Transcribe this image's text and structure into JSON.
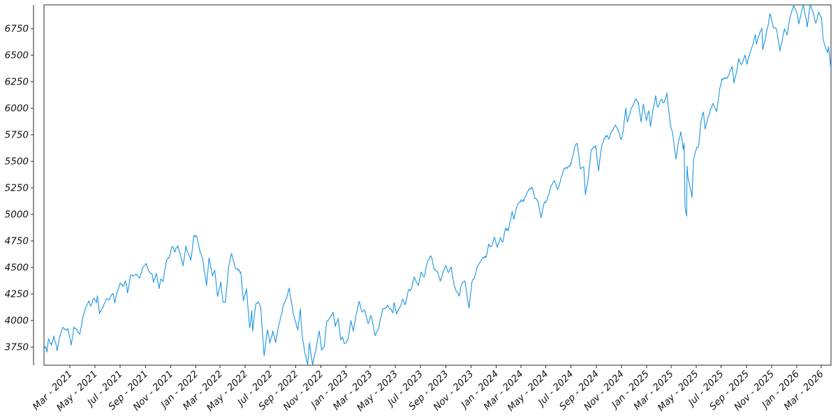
{
  "chart_data": {
    "type": "line",
    "title": "",
    "legend": null,
    "grid": false,
    "line_color": "#1b95e0",
    "frame_color": "#2b2b2b",
    "text_color": "#111111",
    "background": "#ffffff",
    "xlim": [
      "2020-12-28",
      "2026-03-25"
    ],
    "ylim": [
      3578,
      6974
    ],
    "daily_noise": 12,
    "y_axis": {
      "ticks": [
        3750,
        4000,
        4250,
        4500,
        4750,
        5000,
        5250,
        5500,
        5750,
        6000,
        6250,
        6500,
        6750
      ]
    },
    "x_axis": {
      "rotation": 45,
      "ticks": [
        {
          "label": "Mar - 2021",
          "date": "2021-03-01"
        },
        {
          "label": "May - 2021",
          "date": "2021-05-01"
        },
        {
          "label": "Jul - 2021",
          "date": "2021-07-01"
        },
        {
          "label": "Sep - 2021",
          "date": "2021-09-01"
        },
        {
          "label": "Nov - 2021",
          "date": "2021-11-01"
        },
        {
          "label": "Jan - 2022",
          "date": "2022-01-01"
        },
        {
          "label": "Mar - 2022",
          "date": "2022-03-01"
        },
        {
          "label": "May - 2022",
          "date": "2022-05-01"
        },
        {
          "label": "Jul - 2022",
          "date": "2022-07-01"
        },
        {
          "label": "Sep - 2022",
          "date": "2022-09-01"
        },
        {
          "label": "Nov - 2022",
          "date": "2022-11-01"
        },
        {
          "label": "Jan - 2023",
          "date": "2023-01-01"
        },
        {
          "label": "Mar - 2023",
          "date": "2023-03-01"
        },
        {
          "label": "May - 2023",
          "date": "2023-05-01"
        },
        {
          "label": "Jul - 2023",
          "date": "2023-07-01"
        },
        {
          "label": "Sep - 2023",
          "date": "2023-09-01"
        },
        {
          "label": "Nov - 2023",
          "date": "2023-11-01"
        },
        {
          "label": "Jan - 2024",
          "date": "2024-01-01"
        },
        {
          "label": "Mar - 2024",
          "date": "2024-03-01"
        },
        {
          "label": "May - 2024",
          "date": "2024-05-01"
        },
        {
          "label": "Jul - 2024",
          "date": "2024-07-01"
        },
        {
          "label": "Sep - 2024",
          "date": "2024-09-01"
        },
        {
          "label": "Nov - 2024",
          "date": "2024-11-01"
        },
        {
          "label": "Jan - 2025",
          "date": "2025-01-01"
        },
        {
          "label": "Mar - 2025",
          "date": "2025-03-01"
        },
        {
          "label": "May - 2025",
          "date": "2025-05-01"
        },
        {
          "label": "Jul - 2025",
          "date": "2025-07-01"
        },
        {
          "label": "Sep - 2025",
          "date": "2025-09-01"
        },
        {
          "label": "Nov - 2025",
          "date": "2025-11-01"
        },
        {
          "label": "Jan - 2026",
          "date": "2026-01-01"
        },
        {
          "label": "Mar - 2026",
          "date": "2026-03-01"
        }
      ]
    },
    "points": [
      [
        "2020-12-28",
        3735
      ],
      [
        "2020-12-31",
        3756
      ],
      [
        "2021-01-04",
        3701
      ],
      [
        "2021-01-08",
        3825
      ],
      [
        "2021-01-15",
        3768
      ],
      [
        "2021-01-21",
        3853
      ],
      [
        "2021-01-29",
        3714
      ],
      [
        "2021-02-03",
        3830
      ],
      [
        "2021-02-12",
        3935
      ],
      [
        "2021-02-19",
        3907
      ],
      [
        "2021-02-24",
        3925
      ],
      [
        "2021-03-04",
        3768
      ],
      [
        "2021-03-11",
        3939
      ],
      [
        "2021-03-18",
        3915
      ],
      [
        "2021-03-25",
        3870
      ],
      [
        "2021-04-01",
        4020
      ],
      [
        "2021-04-09",
        4129
      ],
      [
        "2021-04-16",
        4185
      ],
      [
        "2021-04-20",
        4135
      ],
      [
        "2021-04-29",
        4211
      ],
      [
        "2021-05-04",
        4164
      ],
      [
        "2021-05-07",
        4233
      ],
      [
        "2021-05-12",
        4063
      ],
      [
        "2021-05-19",
        4116
      ],
      [
        "2021-05-28",
        4204
      ],
      [
        "2021-06-03",
        4193
      ],
      [
        "2021-06-14",
        4255
      ],
      [
        "2021-06-18",
        4166
      ],
      [
        "2021-06-25",
        4281
      ],
      [
        "2021-07-02",
        4352
      ],
      [
        "2021-07-08",
        4321
      ],
      [
        "2021-07-14",
        4374
      ],
      [
        "2021-07-19",
        4258
      ],
      [
        "2021-07-26",
        4422
      ],
      [
        "2021-08-03",
        4423
      ],
      [
        "2021-08-10",
        4436
      ],
      [
        "2021-08-18",
        4400
      ],
      [
        "2021-08-25",
        4496
      ],
      [
        "2021-09-02",
        4537
      ],
      [
        "2021-09-10",
        4459
      ],
      [
        "2021-09-17",
        4433
      ],
      [
        "2021-09-20",
        4358
      ],
      [
        "2021-09-27",
        4443
      ],
      [
        "2021-10-04",
        4300
      ],
      [
        "2021-10-08",
        4391
      ],
      [
        "2021-10-13",
        4364
      ],
      [
        "2021-10-21",
        4550
      ],
      [
        "2021-10-29",
        4605
      ],
      [
        "2021-11-05",
        4698
      ],
      [
        "2021-11-10",
        4647
      ],
      [
        "2021-11-18",
        4705
      ],
      [
        "2021-11-26",
        4595
      ],
      [
        "2021-12-01",
        4513
      ],
      [
        "2021-12-08",
        4701
      ],
      [
        "2021-12-14",
        4634
      ],
      [
        "2021-12-20",
        4568
      ],
      [
        "2021-12-27",
        4791
      ],
      [
        "2022-01-03",
        4797
      ],
      [
        "2022-01-10",
        4670
      ],
      [
        "2022-01-18",
        4577
      ],
      [
        "2022-01-27",
        4327
      ],
      [
        "2022-02-02",
        4589
      ],
      [
        "2022-02-11",
        4419
      ],
      [
        "2022-02-16",
        4475
      ],
      [
        "2022-02-23",
        4226
      ],
      [
        "2022-03-03",
        4363
      ],
      [
        "2022-03-08",
        4171
      ],
      [
        "2022-03-14",
        4173
      ],
      [
        "2022-03-22",
        4512
      ],
      [
        "2022-03-29",
        4631
      ],
      [
        "2022-04-08",
        4488
      ],
      [
        "2022-04-20",
        4459
      ],
      [
        "2022-04-27",
        4184
      ],
      [
        "2022-05-04",
        4300
      ],
      [
        "2022-05-12",
        3930
      ],
      [
        "2022-05-17",
        4089
      ],
      [
        "2022-05-19",
        3900
      ],
      [
        "2022-05-27",
        4158
      ],
      [
        "2022-06-02",
        4177
      ],
      [
        "2022-06-08",
        4116
      ],
      [
        "2022-06-16",
        3667
      ],
      [
        "2022-06-24",
        3912
      ],
      [
        "2022-06-30",
        3785
      ],
      [
        "2022-07-07",
        3902
      ],
      [
        "2022-07-14",
        3790
      ],
      [
        "2022-07-22",
        3962
      ],
      [
        "2022-08-03",
        4155
      ],
      [
        "2022-08-10",
        4210
      ],
      [
        "2022-08-16",
        4305
      ],
      [
        "2022-08-26",
        4058
      ],
      [
        "2022-09-06",
        3908
      ],
      [
        "2022-09-12",
        4110
      ],
      [
        "2022-09-16",
        3873
      ],
      [
        "2022-09-23",
        3693
      ],
      [
        "2022-09-30",
        3586
      ],
      [
        "2022-10-04",
        3791
      ],
      [
        "2022-10-12",
        3577
      ],
      [
        "2022-10-17",
        3678
      ],
      [
        "2022-10-21",
        3753
      ],
      [
        "2022-10-28",
        3901
      ],
      [
        "2022-11-03",
        3720
      ],
      [
        "2022-11-09",
        3748
      ],
      [
        "2022-11-15",
        3992
      ],
      [
        "2022-11-23",
        4027
      ],
      [
        "2022-12-01",
        4077
      ],
      [
        "2022-12-06",
        3941
      ],
      [
        "2022-12-13",
        4020
      ],
      [
        "2022-12-19",
        3818
      ],
      [
        "2022-12-23",
        3845
      ],
      [
        "2022-12-28",
        3783
      ],
      [
        "2023-01-05",
        3808
      ],
      [
        "2023-01-13",
        3999
      ],
      [
        "2023-01-19",
        3899
      ],
      [
        "2023-01-26",
        4060
      ],
      [
        "2023-02-02",
        4180
      ],
      [
        "2023-02-09",
        4081
      ],
      [
        "2023-02-16",
        4090
      ],
      [
        "2023-02-24",
        3970
      ],
      [
        "2023-03-03",
        4046
      ],
      [
        "2023-03-13",
        3856
      ],
      [
        "2023-03-22",
        3937
      ],
      [
        "2023-03-31",
        4109
      ],
      [
        "2023-04-14",
        4138
      ],
      [
        "2023-04-25",
        4071
      ],
      [
        "2023-04-28",
        4169
      ],
      [
        "2023-05-04",
        4061
      ],
      [
        "2023-05-12",
        4124
      ],
      [
        "2023-05-18",
        4198
      ],
      [
        "2023-05-25",
        4151
      ],
      [
        "2023-06-02",
        4282
      ],
      [
        "2023-06-09",
        4299
      ],
      [
        "2023-06-16",
        4410
      ],
      [
        "2023-06-26",
        4329
      ],
      [
        "2023-07-03",
        4456
      ],
      [
        "2023-07-10",
        4410
      ],
      [
        "2023-07-19",
        4566
      ],
      [
        "2023-07-27",
        4607
      ],
      [
        "2023-08-04",
        4478
      ],
      [
        "2023-08-11",
        4464
      ],
      [
        "2023-08-18",
        4370
      ],
      [
        "2023-08-29",
        4498
      ],
      [
        "2023-09-01",
        4516
      ],
      [
        "2023-09-07",
        4451
      ],
      [
        "2023-09-14",
        4505
      ],
      [
        "2023-09-21",
        4330
      ],
      [
        "2023-09-27",
        4274
      ],
      [
        "2023-10-03",
        4229
      ],
      [
        "2023-10-10",
        4358
      ],
      [
        "2023-10-17",
        4373
      ],
      [
        "2023-10-27",
        4117
      ],
      [
        "2023-11-03",
        4358
      ],
      [
        "2023-11-10",
        4415
      ],
      [
        "2023-11-17",
        4514
      ],
      [
        "2023-11-24",
        4559
      ],
      [
        "2023-12-01",
        4595
      ],
      [
        "2023-12-08",
        4604
      ],
      [
        "2023-12-14",
        4720
      ],
      [
        "2023-12-20",
        4698
      ],
      [
        "2023-12-28",
        4783
      ],
      [
        "2024-01-04",
        4688
      ],
      [
        "2024-01-11",
        4780
      ],
      [
        "2024-01-17",
        4739
      ],
      [
        "2024-01-24",
        4869
      ],
      [
        "2024-01-31",
        4846
      ],
      [
        "2024-02-09",
        5027
      ],
      [
        "2024-02-13",
        4953
      ],
      [
        "2024-02-22",
        5087
      ],
      [
        "2024-03-01",
        5137
      ],
      [
        "2024-03-08",
        5124
      ],
      [
        "2024-03-21",
        5241
      ],
      [
        "2024-03-28",
        5254
      ],
      [
        "2024-04-04",
        5147
      ],
      [
        "2024-04-12",
        5123
      ],
      [
        "2024-04-19",
        4967
      ],
      [
        "2024-04-26",
        5100
      ],
      [
        "2024-05-03",
        5128
      ],
      [
        "2024-05-10",
        5223
      ],
      [
        "2024-05-21",
        5321
      ],
      [
        "2024-05-30",
        5235
      ],
      [
        "2024-06-07",
        5347
      ],
      [
        "2024-06-14",
        5432
      ],
      [
        "2024-06-24",
        5448
      ],
      [
        "2024-07-01",
        5475
      ],
      [
        "2024-07-10",
        5634
      ],
      [
        "2024-07-16",
        5667
      ],
      [
        "2024-07-24",
        5427
      ],
      [
        "2024-08-01",
        5446
      ],
      [
        "2024-08-05",
        5186
      ],
      [
        "2024-08-12",
        5344
      ],
      [
        "2024-08-19",
        5608
      ],
      [
        "2024-08-30",
        5648
      ],
      [
        "2024-09-06",
        5408
      ],
      [
        "2024-09-13",
        5626
      ],
      [
        "2024-09-19",
        5714
      ],
      [
        "2024-09-26",
        5745
      ],
      [
        "2024-10-01",
        5709
      ],
      [
        "2024-10-09",
        5792
      ],
      [
        "2024-10-17",
        5841
      ],
      [
        "2024-10-23",
        5797
      ],
      [
        "2024-10-31",
        5705
      ],
      [
        "2024-11-05",
        5783
      ],
      [
        "2024-11-11",
        6001
      ],
      [
        "2024-11-15",
        5870
      ],
      [
        "2024-11-22",
        5969
      ],
      [
        "2024-11-29",
        6032
      ],
      [
        "2024-12-06",
        6090
      ],
      [
        "2024-12-12",
        6051
      ],
      [
        "2024-12-18",
        5872
      ],
      [
        "2024-12-24",
        6040
      ],
      [
        "2024-12-31",
        5882
      ],
      [
        "2025-01-06",
        5975
      ],
      [
        "2025-01-10",
        5827
      ],
      [
        "2025-01-17",
        5997
      ],
      [
        "2025-01-23",
        6119
      ],
      [
        "2025-01-27",
        6012
      ],
      [
        "2025-02-06",
        6083
      ],
      [
        "2025-02-12",
        6052
      ],
      [
        "2025-02-19",
        6144
      ],
      [
        "2025-02-27",
        5862
      ],
      [
        "2025-03-06",
        5739
      ],
      [
        "2025-03-13",
        5521
      ],
      [
        "2025-03-19",
        5676
      ],
      [
        "2025-03-25",
        5777
      ],
      [
        "2025-03-31",
        5612
      ],
      [
        "2025-04-02",
        5671
      ],
      [
        "2025-04-04",
        5074
      ],
      [
        "2025-04-08",
        4983
      ],
      [
        "2025-04-09",
        5457
      ],
      [
        "2025-04-11",
        5363
      ],
      [
        "2025-04-21",
        5158
      ],
      [
        "2025-04-25",
        5525
      ],
      [
        "2025-05-01",
        5604
      ],
      [
        "2025-05-08",
        5664
      ],
      [
        "2025-05-13",
        5886
      ],
      [
        "2025-05-19",
        5964
      ],
      [
        "2025-05-23",
        5803
      ],
      [
        "2025-05-30",
        5912
      ],
      [
        "2025-06-06",
        6000
      ],
      [
        "2025-06-12",
        6045
      ],
      [
        "2025-06-20",
        5968
      ],
      [
        "2025-06-27",
        6173
      ],
      [
        "2025-07-03",
        6279
      ],
      [
        "2025-07-10",
        6280
      ],
      [
        "2025-07-17",
        6297
      ],
      [
        "2025-07-23",
        6359
      ],
      [
        "2025-07-28",
        6390
      ],
      [
        "2025-08-01",
        6238
      ],
      [
        "2025-08-07",
        6340
      ],
      [
        "2025-08-13",
        6467
      ],
      [
        "2025-08-19",
        6411
      ],
      [
        "2025-08-28",
        6501
      ],
      [
        "2025-09-02",
        6415
      ],
      [
        "2025-09-10",
        6532
      ],
      [
        "2025-09-18",
        6632
      ],
      [
        "2025-09-22",
        6693
      ],
      [
        "2025-09-25",
        6605
      ],
      [
        "2025-10-03",
        6716
      ],
      [
        "2025-10-08",
        6754
      ],
      [
        "2025-10-10",
        6553
      ],
      [
        "2025-10-17",
        6664
      ],
      [
        "2025-10-28",
        6891
      ],
      [
        "2025-11-04",
        6772
      ],
      [
        "2025-11-13",
        6737
      ],
      [
        "2025-11-21",
        6539
      ],
      [
        "2025-12-02",
        6750
      ],
      [
        "2025-12-08",
        6690
      ],
      [
        "2025-12-16",
        6870
      ],
      [
        "2025-12-24",
        6968
      ],
      [
        "2026-01-02",
        6885
      ],
      [
        "2026-01-06",
        6795
      ],
      [
        "2026-01-16",
        6980
      ],
      [
        "2026-01-23",
        6855
      ],
      [
        "2026-01-26",
        6765
      ],
      [
        "2026-02-02",
        6978
      ],
      [
        "2026-02-09",
        6908
      ],
      [
        "2026-02-16",
        6800
      ],
      [
        "2026-02-23",
        6905
      ],
      [
        "2026-03-02",
        6845
      ],
      [
        "2026-03-06",
        6645
      ],
      [
        "2026-03-13",
        6560
      ],
      [
        "2026-03-17",
        6525
      ],
      [
        "2026-03-19",
        6580
      ],
      [
        "2026-03-25",
        6365
      ]
    ]
  }
}
